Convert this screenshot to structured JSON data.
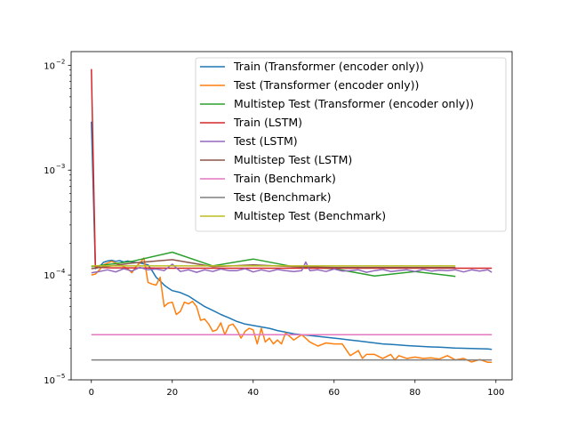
{
  "chart_data": {
    "type": "line",
    "title": "",
    "xlabel": "",
    "ylabel": "",
    "xlim": [
      -5,
      104
    ],
    "ylim": [
      1e-05,
      0.0135
    ],
    "yscale": "log",
    "grid": false,
    "legend_placement": "upper-right",
    "x_ticks": [
      0,
      20,
      40,
      60,
      80,
      100
    ],
    "x_tick_labels": [
      "0",
      "20",
      "40",
      "60",
      "80",
      "100"
    ],
    "y_ticks": [
      1e-05,
      0.0001,
      0.001,
      0.01
    ],
    "y_tick_labels": [
      "10",
      "10",
      "10",
      "10"
    ],
    "y_tick_exponents": [
      "−5",
      "−4",
      "−3",
      "−2"
    ],
    "series": [
      {
        "name": "Train (Transformer (encoder only))",
        "color": "#1f77b4",
        "x": [
          0,
          1,
          2,
          3,
          4,
          5,
          6,
          7,
          8,
          9,
          10,
          12,
          14,
          15,
          16,
          17,
          18,
          19,
          20,
          22,
          24,
          26,
          28,
          30,
          32,
          34,
          36,
          38,
          40,
          42,
          44,
          46,
          48,
          50,
          52,
          54,
          56,
          58,
          60,
          62,
          64,
          66,
          68,
          70,
          72,
          74,
          76,
          78,
          80,
          82,
          84,
          86,
          88,
          90,
          92,
          94,
          96,
          98,
          99
        ],
        "y": [
          0.0029,
          0.000115,
          0.00012,
          0.000132,
          0.000136,
          0.000138,
          0.000135,
          0.000137,
          0.000133,
          0.000136,
          0.000133,
          0.00013,
          0.000125,
          0.00011,
          9.5e-05,
          8.8e-05,
          8e-05,
          7.5e-05,
          7.1e-05,
          6.8e-05,
          6.3e-05,
          5.6e-05,
          5e-05,
          4.6e-05,
          4.2e-05,
          3.9e-05,
          3.6e-05,
          3.4e-05,
          3.3e-05,
          3.2e-05,
          3.1e-05,
          2.95e-05,
          2.85e-05,
          2.75e-05,
          2.7e-05,
          2.65e-05,
          2.6e-05,
          2.55e-05,
          2.5e-05,
          2.45e-05,
          2.4e-05,
          2.35e-05,
          2.3e-05,
          2.25e-05,
          2.2e-05,
          2.18e-05,
          2.15e-05,
          2.12e-05,
          2.1e-05,
          2.08e-05,
          2.06e-05,
          2.05e-05,
          2.03e-05,
          2.01e-05,
          2e-05,
          1.99e-05,
          1.98e-05,
          1.97e-05,
          1.95e-05
        ]
      },
      {
        "name": "Test (Transformer (encoder only))",
        "color": "#ff7f0e",
        "x": [
          0,
          1,
          2,
          3,
          4,
          5,
          6,
          7,
          8,
          9,
          10,
          11,
          12,
          13,
          14,
          15,
          16,
          17,
          18,
          19,
          20,
          21,
          22,
          23,
          24,
          25,
          26,
          27,
          28,
          29,
          30,
          31,
          32,
          33,
          34,
          35,
          36,
          37,
          38,
          39,
          40,
          41,
          42,
          43,
          44,
          45,
          46,
          47,
          48,
          49,
          50,
          52,
          54,
          56,
          58,
          60,
          62,
          64,
          66,
          67,
          68,
          70,
          72,
          74,
          75,
          76,
          78,
          80,
          82,
          84,
          86,
          88,
          90,
          92,
          94,
          96,
          98,
          99
        ],
        "y": [
          0.0001,
          0.000102,
          0.000112,
          0.000125,
          0.00013,
          0.000135,
          0.00013,
          0.000125,
          0.00012,
          0.000115,
          0.000105,
          0.00012,
          0.00013,
          0.000145,
          8.5e-05,
          8.2e-05,
          8e-05,
          9.5e-05,
          5e-05,
          5.4e-05,
          5.5e-05,
          4.2e-05,
          4.5e-05,
          5.5e-05,
          5.3e-05,
          5.6e-05,
          5e-05,
          3.7e-05,
          3.8e-05,
          3.4e-05,
          2.9e-05,
          3e-05,
          3.5e-05,
          2.7e-05,
          3.3e-05,
          3.4e-05,
          3e-05,
          2.5e-05,
          2.9e-05,
          3.1e-05,
          3e-05,
          2.2e-05,
          3.1e-05,
          2.3e-05,
          2.5e-05,
          2.2e-05,
          2.4e-05,
          2.2e-05,
          2.8e-05,
          2.6e-05,
          2.4e-05,
          2.7e-05,
          2.3e-05,
          2.1e-05,
          2.25e-05,
          2.2e-05,
          2.2e-05,
          1.7e-05,
          1.9e-05,
          1.6e-05,
          1.75e-05,
          1.75e-05,
          1.6e-05,
          1.75e-05,
          1.55e-05,
          1.7e-05,
          1.6e-05,
          1.65e-05,
          1.6e-05,
          1.62e-05,
          1.58e-05,
          1.7e-05,
          1.55e-05,
          1.6e-05,
          1.48e-05,
          1.56e-05,
          1.47e-05,
          1.47e-05
        ]
      },
      {
        "name": "Multistep Test (Transformer (encoder only))",
        "color": "#2ca02c",
        "x": [
          0,
          10,
          20,
          30,
          40,
          50,
          60,
          70,
          80,
          90
        ],
        "y": [
          0.00012,
          0.000135,
          0.000165,
          0.000122,
          0.000142,
          0.00012,
          0.000115,
          9.8e-05,
          0.000108,
          9.7e-05
        ]
      },
      {
        "name": "Train (LSTM)",
        "color": "#d62728",
        "x": [
          0,
          1,
          2,
          5,
          10,
          20,
          30,
          40,
          50,
          60,
          70,
          80,
          90,
          99
        ],
        "y": [
          0.0092,
          0.00012,
          0.000118,
          0.000117,
          0.000117,
          0.000116,
          0.000116,
          0.000116,
          0.000116,
          0.000116,
          0.000116,
          0.000116,
          0.000116,
          0.000116
        ]
      },
      {
        "name": "Test (LSTM)",
        "color": "#9467bd",
        "x": [
          0,
          2,
          4,
          6,
          8,
          10,
          12,
          14,
          16,
          18,
          20,
          22,
          24,
          26,
          28,
          30,
          32,
          34,
          36,
          38,
          40,
          42,
          44,
          46,
          48,
          50,
          52,
          53,
          54,
          56,
          58,
          60,
          62,
          64,
          66,
          68,
          70,
          72,
          74,
          76,
          78,
          80,
          82,
          84,
          86,
          88,
          90,
          92,
          94,
          96,
          98,
          99
        ],
        "y": [
          0.000105,
          0.000108,
          0.000112,
          0.000107,
          0.000115,
          0.000109,
          0.000118,
          0.000112,
          0.000114,
          0.00011,
          0.000127,
          0.000108,
          0.000112,
          0.000106,
          0.000112,
          0.000108,
          0.000114,
          0.00011,
          0.00011,
          0.000115,
          0.000107,
          0.000112,
          0.000108,
          0.000113,
          0.00011,
          0.000108,
          0.00011,
          0.000133,
          0.00011,
          0.000112,
          0.000108,
          0.000114,
          0.000109,
          0.00011,
          0.000112,
          0.000106,
          0.00011,
          0.000113,
          0.000108,
          0.00011,
          0.000112,
          0.000108,
          0.000113,
          0.000109,
          0.000111,
          0.00011,
          0.000112,
          0.000107,
          0.000112,
          0.000109,
          0.000112,
          0.000106
        ]
      },
      {
        "name": "Multistep Test (LSTM)",
        "color": "#8c564b",
        "x": [
          0,
          10,
          20,
          30,
          40,
          50,
          60,
          70,
          80,
          90
        ],
        "y": [
          0.000115,
          0.00013,
          0.00014,
          0.00012,
          0.000125,
          0.00012,
          0.000118,
          0.000118,
          0.000118,
          0.000118
        ]
      },
      {
        "name": "Train (Benchmark)",
        "color": "#e377c2",
        "x": [
          0,
          99
        ],
        "y": [
          2.7e-05,
          2.7e-05
        ]
      },
      {
        "name": "Test (Benchmark)",
        "color": "#7f7f7f",
        "x": [
          0,
          99
        ],
        "y": [
          1.55e-05,
          1.55e-05
        ]
      },
      {
        "name": "Multistep Test (Benchmark)",
        "color": "#bcbd22",
        "x": [
          0,
          90
        ],
        "y": [
          0.000122,
          0.000122
        ]
      }
    ]
  }
}
